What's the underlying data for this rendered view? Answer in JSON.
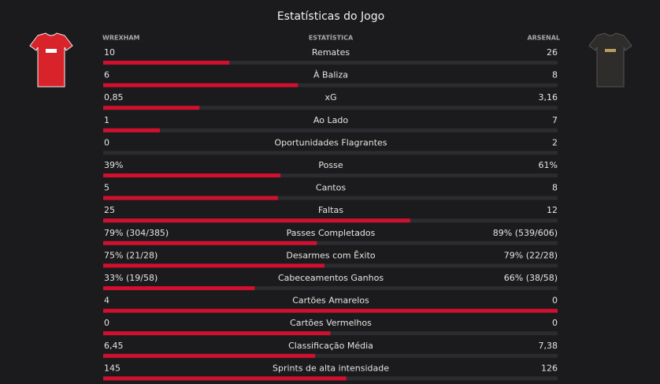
{
  "title": "Estatísticas do Jogo",
  "header": {
    "home": "WREXHAM",
    "stat": "ESTATÍSTICA",
    "away": "ARSENAL"
  },
  "rows": [
    {
      "label": "Remates",
      "home": 10,
      "away": 26
    },
    {
      "label": "À Baliza",
      "home": 6,
      "away": 8
    },
    {
      "label": "xG",
      "home": {
        "value": 0.85,
        "label": "0,85"
      },
      "away": {
        "value": 3.16,
        "label": "3,16"
      }
    },
    {
      "label": "Ao Lado",
      "home": 1,
      "away": 7
    },
    {
      "label": "Oportunidades Flagrantes",
      "home": 0,
      "away": 2
    },
    {
      "label": "Posse",
      "home": {
        "value": 39,
        "label": "39%"
      },
      "away": {
        "value": 61,
        "label": "61%"
      }
    },
    {
      "label": "Cantos",
      "home": 5,
      "away": 8
    },
    {
      "label": "Faltas",
      "home": 25,
      "away": 12
    },
    {
      "label": "Passes Completados",
      "home": {
        "value": 79,
        "label": "79% (304/385)"
      },
      "away": {
        "value": 89,
        "label": "89% (539/606)"
      }
    },
    {
      "label": "Desarmes com Êxito",
      "home": {
        "value": 75,
        "label": "75% (21/28)"
      },
      "away": {
        "value": 79,
        "label": "79% (22/28)"
      }
    },
    {
      "label": "Cabeceamentos Ganhos",
      "home": {
        "value": 33,
        "label": "33% (19/58)"
      },
      "away": {
        "value": 66,
        "label": "66% (38/58)"
      }
    },
    {
      "label": "Cartões Amarelos",
      "home": 4,
      "away": 0
    },
    {
      "label": "Cartões Vermelhos",
      "home": 0,
      "away": 0
    },
    {
      "label": "Classificação Média",
      "home": {
        "value": 6.45,
        "label": "6,45"
      },
      "away": {
        "value": 7.38,
        "label": "7,38"
      }
    },
    {
      "label": "Sprints de alta intensidade",
      "home": 145,
      "away": 126
    }
  ]
}
